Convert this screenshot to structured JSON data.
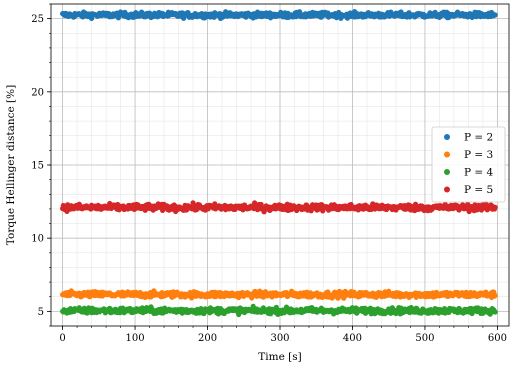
{
  "chart_data": {
    "type": "scatter",
    "title": "",
    "xlabel": "Time [s]",
    "ylabel": "Torque Hellinger distance [%]",
    "xlim": [
      -16,
      616
    ],
    "ylim": [
      4.0,
      26.0
    ],
    "x_range": [
      0,
      597
    ],
    "xticks": [
      0,
      100,
      200,
      300,
      400,
      500,
      600
    ],
    "yticks": [
      5,
      10,
      15,
      20,
      25
    ],
    "grid": "major and minor",
    "legend_position": "center-right",
    "series": [
      {
        "name": "P = 2",
        "color": "#1f77b4",
        "mean": 25.25,
        "spread": 0.09
      },
      {
        "name": "P = 3",
        "color": "#ff7f0e",
        "mean": 6.15,
        "spread": 0.1
      },
      {
        "name": "P = 4",
        "color": "#2ca02c",
        "mean": 5.05,
        "spread": 0.1
      },
      {
        "name": "P = 5",
        "color": "#d62728",
        "mean": 12.1,
        "spread": 0.11
      }
    ]
  }
}
